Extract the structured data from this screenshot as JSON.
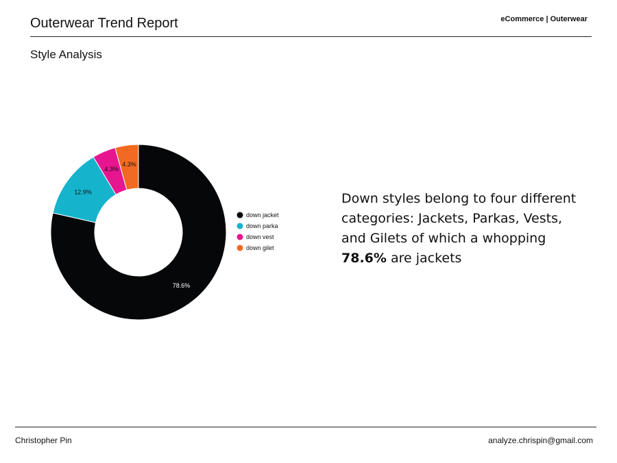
{
  "header": {
    "title": "Outerwear Trend Report",
    "section_tag": "eCommerce | Outerwear",
    "subtitle": "Style Analysis"
  },
  "insight": {
    "text_before": "Down styles belong to four different categories: Jackets, Parkas, Vests, and Gilets of which a whopping ",
    "highlight": "78.6%",
    "text_after": " are jackets"
  },
  "footer": {
    "author": "Christopher Pin",
    "email": "analyze.chrispin@gmail.com"
  },
  "chart_data": {
    "type": "pie",
    "variant": "donut",
    "categories": [
      "down jacket",
      "down parka",
      "down vest",
      "down gilet"
    ],
    "values": [
      78.6,
      12.9,
      4.3,
      4.3
    ],
    "labels": [
      "78.6%",
      "12.9%",
      "4.3%",
      "4.3%"
    ],
    "colors": [
      "#050708",
      "#15b4cc",
      "#e5168f",
      "#f26a22"
    ],
    "label_colors": [
      "#ffffff",
      "#111111",
      "#111111",
      "#111111"
    ],
    "legend_position": "right",
    "start": "top",
    "direction": "clockwise"
  }
}
